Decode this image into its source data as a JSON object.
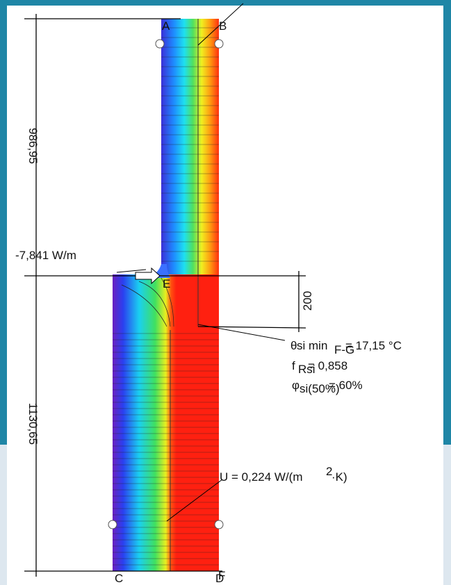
{
  "dimensions": {
    "upper": "986,95",
    "lower": "1130,65",
    "offset": "200"
  },
  "heat_flow": "-7,841 W/m",
  "points": {
    "a": "A",
    "b": "B",
    "c": "C",
    "d": "D",
    "e": "E",
    "f": "F"
  },
  "results": {
    "theta_symbol": "θ",
    "theta_text": "si min",
    "theta_sub": "F-G",
    "theta_value": "= 17,15 °C",
    "frsi_symbol": "f",
    "frsi_sub": "Rsi",
    "frsi_value": "= 0,858",
    "phi_symbol": "φ",
    "phi_sub": "si(50%)",
    "phi_value": "= 60%"
  },
  "u_value": {
    "prefix": "U = 0,224 W/(m",
    "sup": "2",
    "suffix": "·K)"
  }
}
